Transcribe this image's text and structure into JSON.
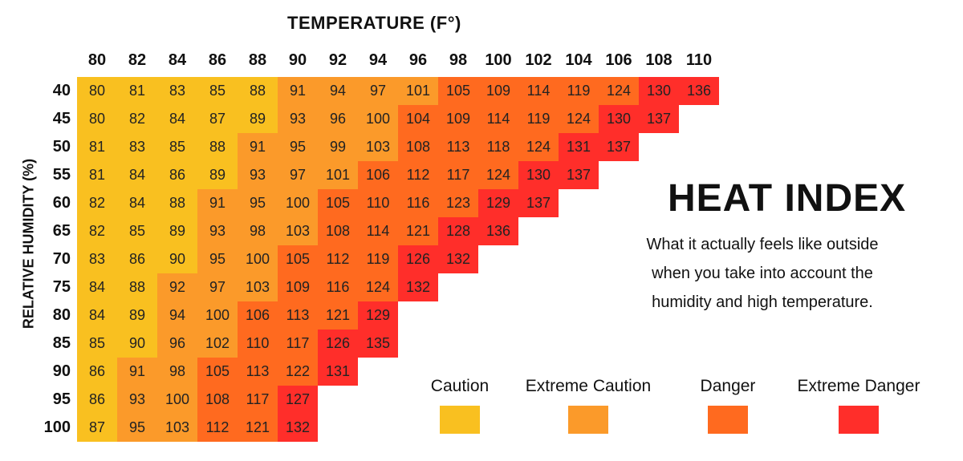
{
  "chart_data": {
    "type": "heatmap",
    "title": "HEAT INDEX",
    "subtitle_lines": [
      "What it actually feels like outside",
      "when you take into account the",
      "humidity and high temperature."
    ],
    "xlabel": "TEMPERATURE  (F°)",
    "ylabel": "RELATIVE HUMIDITY (%)",
    "x": [
      "80",
      "82",
      "84",
      "86",
      "88",
      "90",
      "92",
      "94",
      "96",
      "98",
      "100",
      "102",
      "104",
      "106",
      "108",
      "110"
    ],
    "y": [
      "40",
      "45",
      "50",
      "55",
      "60",
      "65",
      "70",
      "75",
      "80",
      "85",
      "90",
      "95",
      "100"
    ],
    "values": [
      [
        80,
        81,
        83,
        85,
        88,
        91,
        94,
        97,
        101,
        105,
        109,
        114,
        119,
        124,
        130,
        136
      ],
      [
        80,
        82,
        84,
        87,
        89,
        93,
        96,
        100,
        104,
        109,
        114,
        119,
        124,
        130,
        137
      ],
      [
        81,
        83,
        85,
        88,
        91,
        95,
        99,
        103,
        108,
        113,
        118,
        124,
        131,
        137
      ],
      [
        81,
        84,
        86,
        89,
        93,
        97,
        101,
        106,
        112,
        117,
        124,
        130,
        137
      ],
      [
        82,
        84,
        88,
        91,
        95,
        100,
        105,
        110,
        116,
        123,
        129,
        137
      ],
      [
        82,
        85,
        89,
        93,
        98,
        103,
        108,
        114,
        121,
        128,
        136
      ],
      [
        83,
        86,
        90,
        95,
        100,
        105,
        112,
        119,
        126,
        132
      ],
      [
        84,
        88,
        92,
        97,
        103,
        109,
        116,
        124,
        132
      ],
      [
        84,
        89,
        94,
        100,
        106,
        113,
        121,
        129
      ],
      [
        85,
        90,
        96,
        102,
        110,
        117,
        126,
        135
      ],
      [
        86,
        91,
        98,
        105,
        113,
        122,
        131
      ],
      [
        86,
        93,
        100,
        108,
        117,
        127
      ],
      [
        87,
        95,
        103,
        112,
        121,
        132
      ]
    ],
    "categories_scale": [
      {
        "label": "Caution",
        "min": 80,
        "max": 90,
        "color": "#F9C020"
      },
      {
        "label": "Extreme Caution",
        "min": 91,
        "max": 103,
        "color": "#FB9A2A"
      },
      {
        "label": "Danger",
        "min": 104,
        "max": 124,
        "color": "#FF6A1F"
      },
      {
        "label": "Extreme Danger",
        "min": 125,
        "max": 200,
        "color": "#FF2E2A"
      }
    ],
    "legend": [
      {
        "label": "Caution",
        "color": "#F9C020"
      },
      {
        "label": "Extreme Caution",
        "color": "#FB9A2A"
      },
      {
        "label": "Danger",
        "color": "#FF6A1F"
      },
      {
        "label": "Extreme Danger",
        "color": "#FF2E2A"
      }
    ]
  }
}
